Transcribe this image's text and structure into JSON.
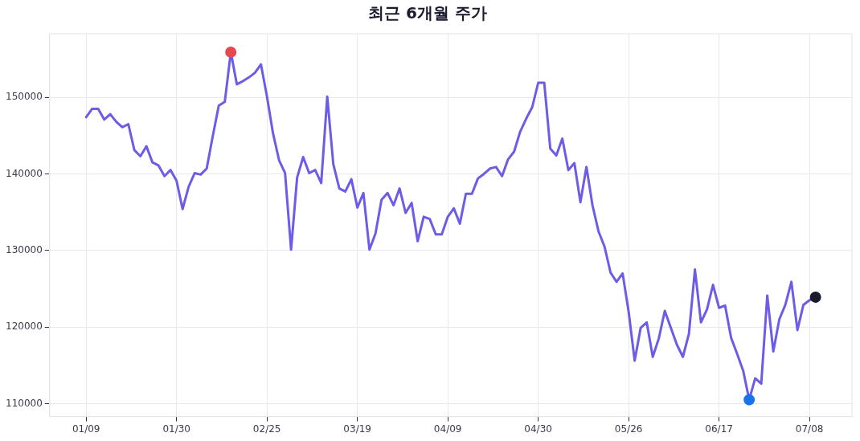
{
  "chart_data": {
    "type": "line",
    "title": "최근 6개월 주가",
    "categories": [
      "01/09",
      null,
      null,
      null,
      null,
      null,
      null,
      null,
      null,
      null,
      null,
      null,
      null,
      null,
      null,
      "01/30",
      null,
      null,
      null,
      null,
      null,
      null,
      null,
      null,
      null,
      null,
      null,
      null,
      null,
      null,
      "02/25",
      null,
      null,
      null,
      null,
      null,
      null,
      null,
      null,
      null,
      null,
      null,
      null,
      null,
      null,
      "03/19",
      null,
      null,
      null,
      null,
      null,
      null,
      null,
      null,
      null,
      null,
      null,
      null,
      null,
      null,
      "04/09",
      null,
      null,
      null,
      null,
      null,
      null,
      null,
      null,
      null,
      null,
      null,
      null,
      null,
      null,
      "04/30",
      null,
      null,
      null,
      null,
      null,
      null,
      null,
      null,
      null,
      null,
      null,
      null,
      null,
      null,
      "05/26",
      null,
      null,
      null,
      null,
      null,
      null,
      null,
      null,
      null,
      null,
      null,
      null,
      null,
      null,
      "06/17",
      null,
      null,
      null,
      null,
      null,
      null,
      null,
      null,
      null,
      null,
      null,
      null,
      null,
      null,
      "07/08",
      null
    ],
    "series": [
      {
        "color": "#6c5ce7",
        "marker": "none",
        "values": [
          147400,
          148500,
          148500,
          147100,
          147800,
          146800,
          146100,
          146500,
          143100,
          142300,
          143600,
          141500,
          141100,
          139700,
          140500,
          139100,
          135400,
          138300,
          140100,
          139900,
          140700,
          144900,
          148900,
          149400,
          155900,
          151700,
          152100,
          152600,
          153200,
          154300,
          150100,
          145300,
          141800,
          140100,
          130100,
          139500,
          142200,
          140100,
          140500,
          138800,
          150100,
          141300,
          138100,
          137700,
          139300,
          135600,
          137500,
          130100,
          132200,
          136600,
          137500,
          135900,
          138100,
          134900,
          136200,
          131200,
          134400,
          134100,
          132100,
          132100,
          134400,
          135500,
          133500,
          137400,
          137400,
          139400,
          140000,
          140700,
          140900,
          139700,
          141900,
          142900,
          145500,
          147200,
          148700,
          151900,
          151900,
          143300,
          142400,
          144600,
          140500,
          141400,
          136300,
          140900,
          135900,
          132500,
          130500,
          127100,
          125900,
          127000,
          122000,
          115600,
          119900,
          120600,
          116100,
          118500,
          122100,
          119900,
          117700,
          116100,
          119100,
          127500,
          120600,
          122300,
          125500,
          122500,
          122800,
          118600,
          116500,
          114300,
          110500,
          113300,
          112600,
          124100,
          116800,
          121000,
          122900,
          125900,
          119600,
          122900,
          123500,
          123900
        ]
      },
      {
        "type": "scatter",
        "color": "#e5484d",
        "marker": "circle",
        "values": [
          null,
          null,
          null,
          null,
          null,
          null,
          null,
          null,
          null,
          null,
          null,
          null,
          null,
          null,
          null,
          null,
          null,
          null,
          null,
          null,
          null,
          null,
          null,
          null,
          155900,
          null,
          null,
          null,
          null,
          null,
          null,
          null,
          null,
          null,
          null,
          null,
          null,
          null,
          null,
          null,
          null,
          null,
          null,
          null,
          null,
          null,
          null,
          null,
          null,
          null,
          null,
          null,
          null,
          null,
          null,
          null,
          null,
          null,
          null,
          null,
          null,
          null,
          null,
          null,
          null,
          null,
          null,
          null,
          null,
          null,
          null,
          null,
          null,
          null,
          null,
          null,
          null,
          null,
          null,
          null,
          null,
          null,
          null,
          null,
          null,
          null,
          null,
          null,
          null,
          null,
          null,
          null,
          null,
          null,
          null,
          null,
          null,
          null,
          null,
          null,
          null,
          null,
          null,
          null,
          null,
          null,
          null,
          null,
          null,
          null,
          null,
          null,
          null,
          null,
          null,
          null,
          null,
          null,
          null,
          null,
          null,
          null
        ]
      },
      {
        "type": "scatter",
        "color": "#1a73e8",
        "marker": "circle",
        "values": [
          null,
          null,
          null,
          null,
          null,
          null,
          null,
          null,
          null,
          null,
          null,
          null,
          null,
          null,
          null,
          null,
          null,
          null,
          null,
          null,
          null,
          null,
          null,
          null,
          null,
          null,
          null,
          null,
          null,
          null,
          null,
          null,
          null,
          null,
          null,
          null,
          null,
          null,
          null,
          null,
          null,
          null,
          null,
          null,
          null,
          null,
          null,
          null,
          null,
          null,
          null,
          null,
          null,
          null,
          null,
          null,
          null,
          null,
          null,
          null,
          null,
          null,
          null,
          null,
          null,
          null,
          null,
          null,
          null,
          null,
          null,
          null,
          null,
          null,
          null,
          null,
          null,
          null,
          null,
          null,
          null,
          null,
          null,
          null,
          null,
          null,
          null,
          null,
          null,
          null,
          null,
          null,
          null,
          null,
          null,
          null,
          null,
          null,
          null,
          null,
          null,
          null,
          null,
          null,
          null,
          null,
          null,
          null,
          null,
          null,
          110500,
          null,
          null,
          null,
          null,
          null,
          null,
          null,
          null,
          null,
          null,
          null
        ]
      },
      {
        "type": "scatter",
        "color": "#1a1a2e",
        "marker": "circle",
        "values": [
          null,
          null,
          null,
          null,
          null,
          null,
          null,
          null,
          null,
          null,
          null,
          null,
          null,
          null,
          null,
          null,
          null,
          null,
          null,
          null,
          null,
          null,
          null,
          null,
          null,
          null,
          null,
          null,
          null,
          null,
          null,
          null,
          null,
          null,
          null,
          null,
          null,
          null,
          null,
          null,
          null,
          null,
          null,
          null,
          null,
          null,
          null,
          null,
          null,
          null,
          null,
          null,
          null,
          null,
          null,
          null,
          null,
          null,
          null,
          null,
          null,
          null,
          null,
          null,
          null,
          null,
          null,
          null,
          null,
          null,
          null,
          null,
          null,
          null,
          null,
          null,
          null,
          null,
          null,
          null,
          null,
          null,
          null,
          null,
          null,
          null,
          null,
          null,
          null,
          null,
          null,
          null,
          null,
          null,
          null,
          null,
          null,
          null,
          null,
          null,
          null,
          null,
          null,
          null,
          null,
          null,
          null,
          null,
          null,
          null,
          null,
          null,
          null,
          null,
          null,
          null,
          null,
          null,
          null,
          null,
          null,
          123900
        ]
      }
    ],
    "ylim": [
      108300,
      158300
    ],
    "yticks": [
      110000,
      120000,
      130000,
      140000,
      150000
    ],
    "grid": true,
    "legend": false
  }
}
